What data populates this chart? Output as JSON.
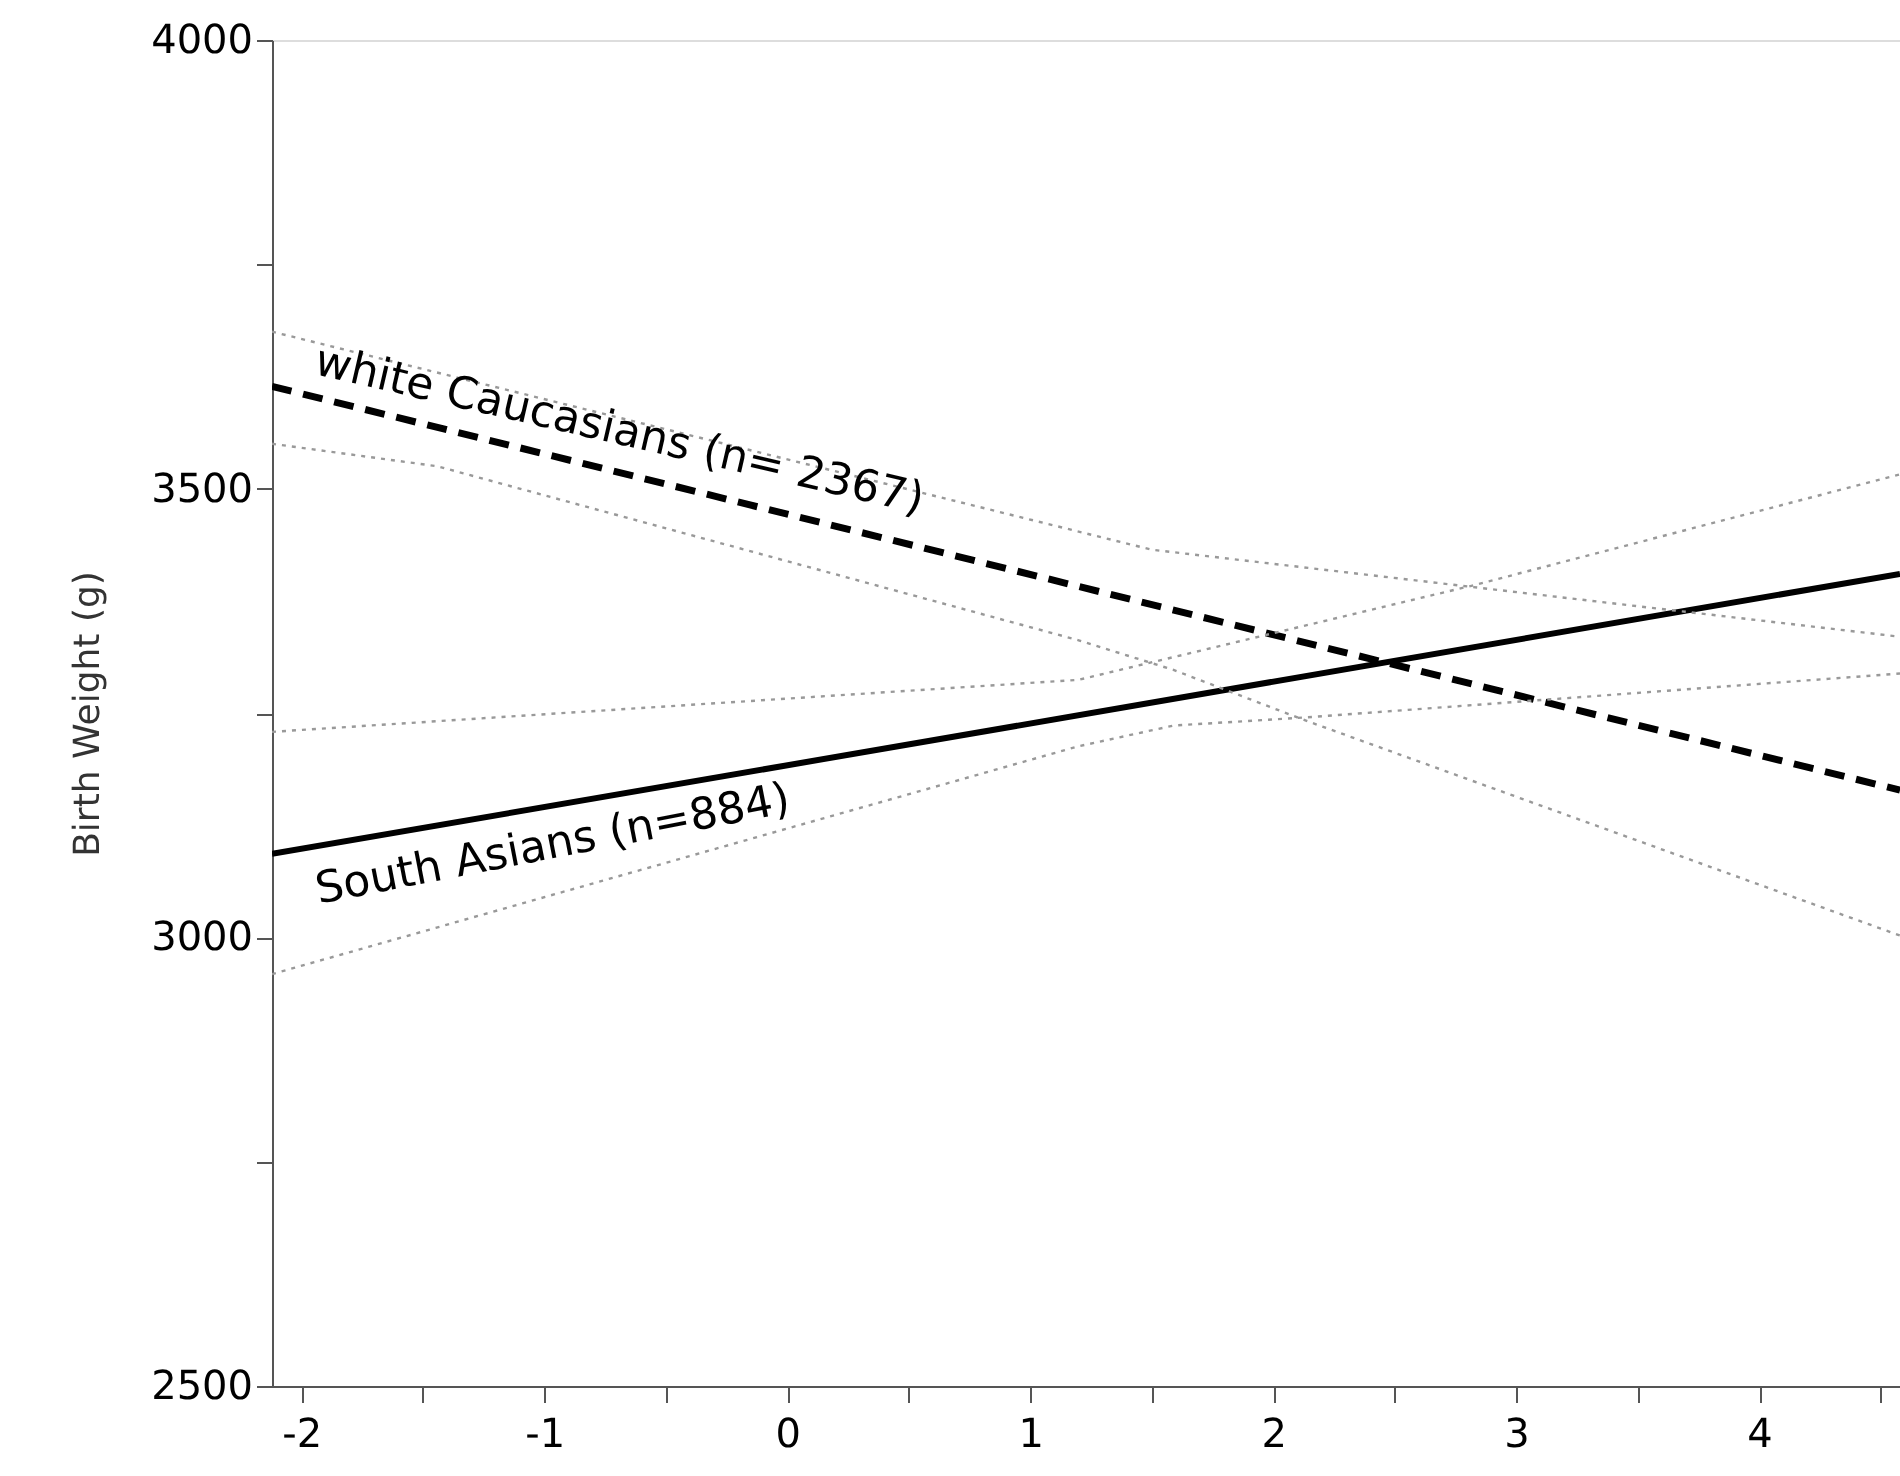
{
  "chart_data": {
    "type": "line",
    "ylabel": "Birth Weight (g)",
    "xlim": [
      -2.12,
      4.58
    ],
    "ylim": [
      2500,
      4000
    ],
    "xticks": [
      -2,
      {
        "value": -1.5,
        "label": null
      },
      -1,
      {
        "value": -0.5,
        "label": null
      },
      0,
      {
        "value": 0.5,
        "label": null
      },
      1,
      {
        "value": 1.5,
        "label": null
      },
      2,
      {
        "value": 2.5,
        "label": null
      },
      3,
      {
        "value": 3.5,
        "label": null
      },
      4,
      {
        "value": 4.5,
        "label": null
      }
    ],
    "yticks": [
      2500,
      {
        "value": 2750,
        "label": null
      },
      3000,
      {
        "value": 3250,
        "label": null
      },
      3500,
      {
        "value": 3750,
        "label": null
      },
      4000
    ],
    "grid": false,
    "marker": "none",
    "series": [
      {
        "color": "#000000",
        "line_style": "dashed",
        "x": [
          -2.12,
          4.58
        ],
        "values": [
          3614,
          3164
        ]
      },
      {
        "color": "#000000",
        "line_style": "solid",
        "x": [
          -2.12,
          4.58
        ],
        "values": [
          3093,
          3405
        ]
      },
      {
        "color": "#999999",
        "line_style": "dotted",
        "x": [
          -2.12,
          1.5,
          4.58
        ],
        "values": [
          3675,
          3432,
          3335
        ]
      },
      {
        "color": "#999999",
        "line_style": "dotted",
        "x": [
          -2.12,
          -1.44,
          1.2,
          1.59,
          2.13,
          4.58
        ],
        "values": [
          3550,
          3525,
          3331,
          3298,
          3242,
          3002
        ]
      },
      {
        "color": "#999999",
        "line_style": "dotted",
        "x": [
          -2.12,
          1.2,
          2.82,
          4.58
        ],
        "values": [
          3229,
          3287,
          3392,
          3516
        ]
      },
      {
        "color": "#999999",
        "line_style": "dotted",
        "x": [
          -2.12,
          1.2,
          1.59,
          2.13,
          4.58
        ],
        "values": [
          2959,
          3213,
          3236,
          3245,
          3294
        ]
      }
    ],
    "annotations": [
      "white Caucasians (n= 2367)",
      "South Asians (n=884)"
    ]
  }
}
